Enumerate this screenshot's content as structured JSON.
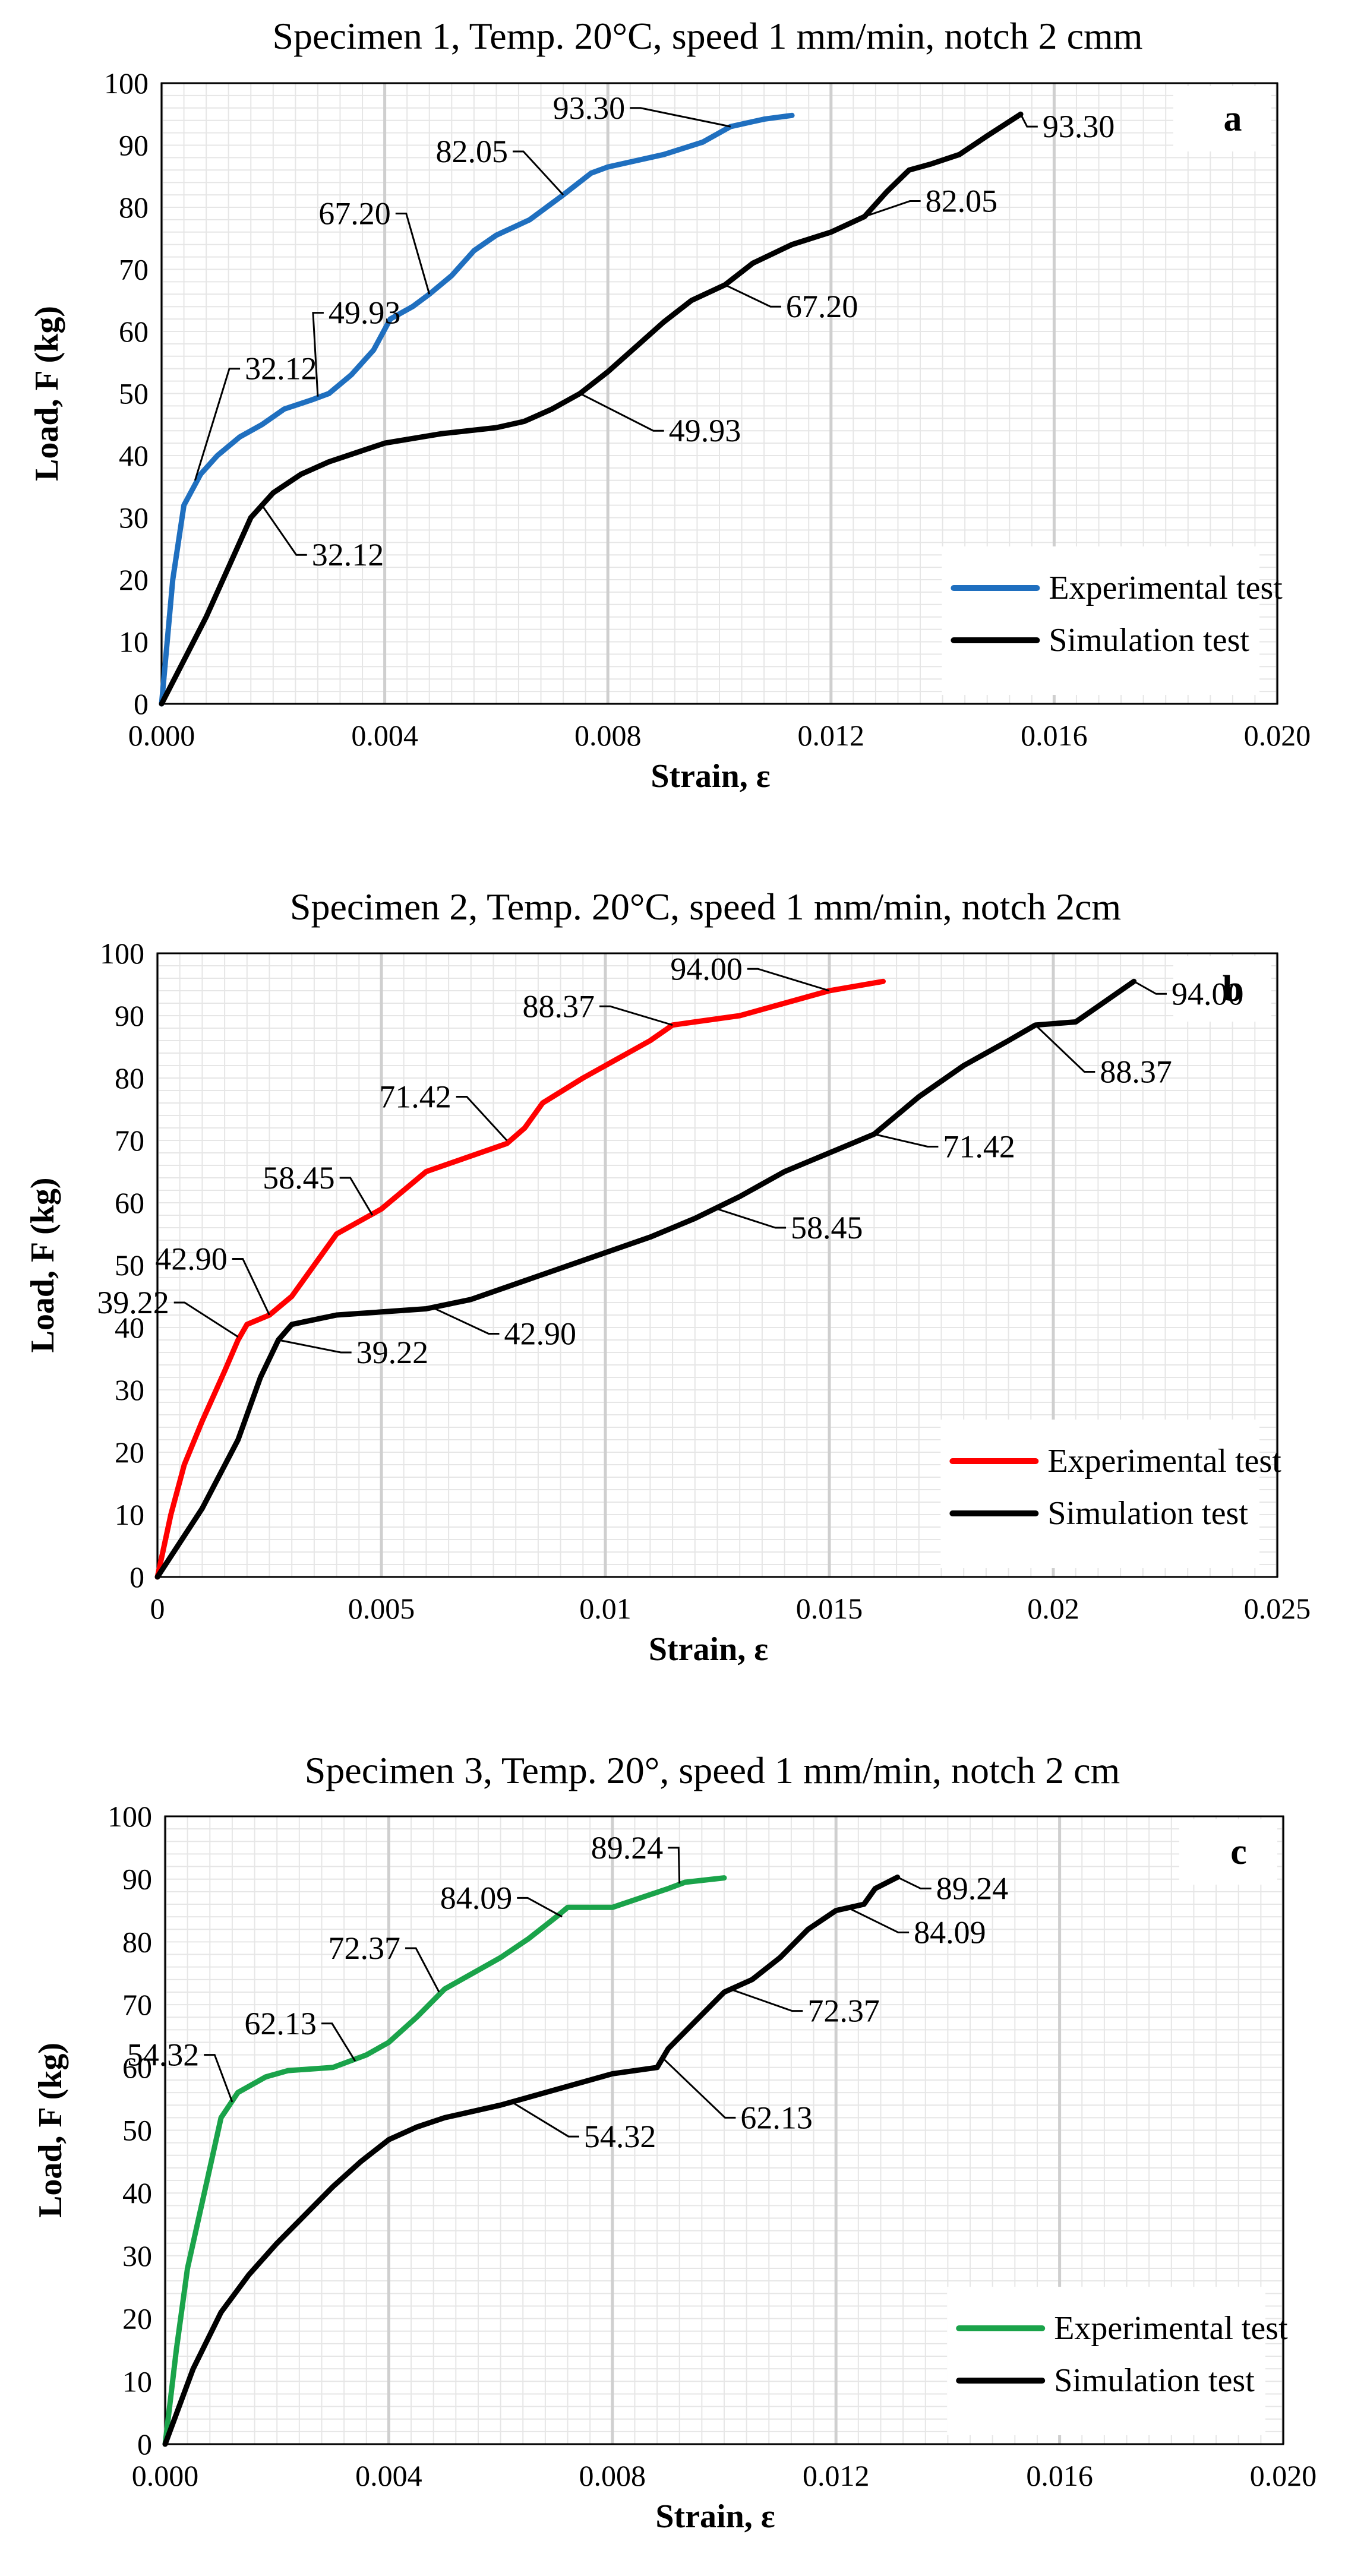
{
  "chart_data": [
    {
      "type": "line",
      "panel_label": "a",
      "title": "Specimen 1, Temp. 20°C, speed 1 mm/min, notch 2 cmm",
      "xlabel": "Strain, ε",
      "ylabel": "Load, F (kg)",
      "xlim": [
        0,
        0.02
      ],
      "ylim": [
        0,
        100
      ],
      "xticks": [
        0,
        0.004,
        0.008,
        0.012,
        0.016,
        0.02
      ],
      "xtick_labels": [
        "0.000",
        "0.004",
        "0.008",
        "0.012",
        "0.016",
        "0.020"
      ],
      "yticks": [
        0,
        10,
        20,
        30,
        40,
        50,
        60,
        70,
        80,
        90,
        100
      ],
      "ytick_labels": [
        "0",
        "10",
        "20",
        "30",
        "40",
        "50",
        "60",
        "70",
        "80",
        "90",
        "100"
      ],
      "legend": "bottom-right",
      "series": [
        {
          "name": "Experimental test",
          "color": "#1f6fbf",
          "points": [
            [
              0,
              0
            ],
            [
              0.0002,
              20
            ],
            [
              0.0004,
              32
            ],
            [
              0.0007,
              37
            ],
            [
              0.001,
              40
            ],
            [
              0.0014,
              43
            ],
            [
              0.0018,
              45
            ],
            [
              0.0022,
              47.5
            ],
            [
              0.0027,
              49
            ],
            [
              0.003,
              50
            ],
            [
              0.0034,
              53
            ],
            [
              0.0038,
              57
            ],
            [
              0.0041,
              62
            ],
            [
              0.0045,
              64
            ],
            [
              0.0048,
              66
            ],
            [
              0.0052,
              69
            ],
            [
              0.0056,
              73
            ],
            [
              0.006,
              75.5
            ],
            [
              0.0066,
              78
            ],
            [
              0.0072,
              82
            ],
            [
              0.0077,
              85.5
            ],
            [
              0.008,
              86.5
            ],
            [
              0.0085,
              87.5
            ],
            [
              0.009,
              88.5
            ],
            [
              0.0097,
              90.5
            ],
            [
              0.0102,
              93
            ],
            [
              0.0108,
              94.2
            ],
            [
              0.0113,
              94.8
            ]
          ]
        },
        {
          "name": "Simulation test",
          "color": "#000000",
          "points": [
            [
              0,
              0
            ],
            [
              0.0008,
              14
            ],
            [
              0.0016,
              30
            ],
            [
              0.002,
              34
            ],
            [
              0.0025,
              37
            ],
            [
              0.003,
              39
            ],
            [
              0.0035,
              40.5
            ],
            [
              0.004,
              42
            ],
            [
              0.005,
              43.5
            ],
            [
              0.006,
              44.5
            ],
            [
              0.0065,
              45.5
            ],
            [
              0.007,
              47.5
            ],
            [
              0.0075,
              50
            ],
            [
              0.008,
              53.5
            ],
            [
              0.0085,
              57.5
            ],
            [
              0.009,
              61.5
            ],
            [
              0.0095,
              65
            ],
            [
              0.0101,
              67.5
            ],
            [
              0.0106,
              71
            ],
            [
              0.0113,
              74
            ],
            [
              0.012,
              76
            ],
            [
              0.0126,
              78.5
            ],
            [
              0.013,
              82.5
            ],
            [
              0.0134,
              86
            ],
            [
              0.0138,
              87
            ],
            [
              0.0143,
              88.5
            ],
            [
              0.0148,
              91.5
            ],
            [
              0.0154,
              95
            ]
          ]
        }
      ],
      "annotations": [
        {
          "series": "Experimental test",
          "label": "32.12",
          "x": 0.0006,
          "y": 36,
          "tx": 0.0013,
          "ty": 54
        },
        {
          "series": "Experimental test",
          "label": "49.93",
          "x": 0.0028,
          "y": 49.5,
          "tx": 0.0028,
          "ty": 63
        },
        {
          "series": "Experimental test",
          "label": "67.20",
          "x": 0.0048,
          "y": 66,
          "tx": 0.0043,
          "ty": 79
        },
        {
          "series": "Experimental test",
          "label": "82.05",
          "x": 0.0072,
          "y": 82,
          "tx": 0.0064,
          "ty": 89
        },
        {
          "series": "Experimental test",
          "label": "93.30",
          "x": 0.0102,
          "y": 93,
          "tx": 0.0085,
          "ty": 96
        },
        {
          "series": "Simulation test",
          "label": "32.12",
          "x": 0.0018,
          "y": 32,
          "tx": 0.0025,
          "ty": 24
        },
        {
          "series": "Simulation test",
          "label": "49.93",
          "x": 0.0075,
          "y": 50,
          "tx": 0.0089,
          "ty": 44
        },
        {
          "series": "Simulation test",
          "label": "67.20",
          "x": 0.0101,
          "y": 67.5,
          "tx": 0.011,
          "ty": 64
        },
        {
          "series": "Simulation test",
          "label": "82.05",
          "x": 0.0126,
          "y": 78.5,
          "tx": 0.0135,
          "ty": 81
        },
        {
          "series": "Simulation test",
          "label": "93.30",
          "x": 0.0154,
          "y": 95,
          "tx": 0.0156,
          "ty": 93
        }
      ]
    },
    {
      "type": "line",
      "panel_label": "b",
      "title": "Specimen 2, Temp. 20°C, speed 1 mm/min, notch 2cm",
      "xlabel": "Strain, ε",
      "ylabel": "Load, F (kg)",
      "xlim": [
        0,
        0.025
      ],
      "ylim": [
        0,
        100
      ],
      "xticks": [
        0,
        0.005,
        0.01,
        0.015,
        0.02,
        0.025
      ],
      "xtick_labels": [
        "0",
        "0.005",
        "0.01",
        "0.015",
        "0.02",
        "0.025"
      ],
      "yticks": [
        0,
        10,
        20,
        30,
        40,
        50,
        60,
        70,
        80,
        90,
        100
      ],
      "ytick_labels": [
        "0",
        "10",
        "20",
        "30",
        "40",
        "50",
        "60",
        "70",
        "80",
        "90",
        "100"
      ],
      "legend": "bottom-right",
      "series": [
        {
          "name": "Experimental test",
          "color": "#ff0000",
          "points": [
            [
              0,
              0
            ],
            [
              0.0003,
              10
            ],
            [
              0.0006,
              18
            ],
            [
              0.001,
              25
            ],
            [
              0.0015,
              33
            ],
            [
              0.0018,
              38
            ],
            [
              0.002,
              40.5
            ],
            [
              0.0025,
              42
            ],
            [
              0.003,
              45
            ],
            [
              0.0035,
              50
            ],
            [
              0.004,
              55
            ],
            [
              0.005,
              59
            ],
            [
              0.006,
              65
            ],
            [
              0.007,
              67.5
            ],
            [
              0.0078,
              69.5
            ],
            [
              0.0082,
              72
            ],
            [
              0.0086,
              76
            ],
            [
              0.0095,
              80
            ],
            [
              0.0105,
              84
            ],
            [
              0.011,
              86
            ],
            [
              0.0115,
              88.5
            ],
            [
              0.012,
              89
            ],
            [
              0.013,
              90
            ],
            [
              0.014,
              92
            ],
            [
              0.015,
              94
            ],
            [
              0.0162,
              95.5
            ]
          ]
        },
        {
          "name": "Simulation test",
          "color": "#000000",
          "points": [
            [
              0,
              0
            ],
            [
              0.001,
              11
            ],
            [
              0.0018,
              22
            ],
            [
              0.0023,
              32
            ],
            [
              0.0027,
              38
            ],
            [
              0.003,
              40.5
            ],
            [
              0.004,
              42
            ],
            [
              0.005,
              42.5
            ],
            [
              0.006,
              43
            ],
            [
              0.007,
              44.5
            ],
            [
              0.008,
              47
            ],
            [
              0.009,
              49.5
            ],
            [
              0.01,
              52
            ],
            [
              0.011,
              54.5
            ],
            [
              0.012,
              57.5
            ],
            [
              0.013,
              61
            ],
            [
              0.014,
              65
            ],
            [
              0.015,
              68
            ],
            [
              0.016,
              71
            ],
            [
              0.017,
              77
            ],
            [
              0.018,
              82
            ],
            [
              0.019,
              86
            ],
            [
              0.0196,
              88.5
            ],
            [
              0.0205,
              89
            ],
            [
              0.021,
              91.5
            ],
            [
              0.0218,
              95.5
            ]
          ]
        }
      ],
      "annotations": [
        {
          "series": "Experimental test",
          "label": "39.22",
          "x": 0.0018,
          "y": 38.5,
          "tx": 0.0005,
          "ty": 44
        },
        {
          "series": "Experimental test",
          "label": "42.90",
          "x": 0.0025,
          "y": 42,
          "tx": 0.0018,
          "ty": 51
        },
        {
          "series": "Experimental test",
          "label": "58.45",
          "x": 0.0048,
          "y": 58,
          "tx": 0.0042,
          "ty": 64
        },
        {
          "series": "Experimental test",
          "label": "71.42",
          "x": 0.0078,
          "y": 70,
          "tx": 0.0068,
          "ty": 77
        },
        {
          "series": "Experimental test",
          "label": "88.37",
          "x": 0.0115,
          "y": 88.5,
          "tx": 0.01,
          "ty": 91.5
        },
        {
          "series": "Experimental test",
          "label": "94.00",
          "x": 0.015,
          "y": 94,
          "tx": 0.0133,
          "ty": 97.5
        },
        {
          "series": "Simulation test",
          "label": "39.22",
          "x": 0.0027,
          "y": 38,
          "tx": 0.0042,
          "ty": 36
        },
        {
          "series": "Simulation test",
          "label": "42.90",
          "x": 0.0062,
          "y": 43,
          "tx": 0.0075,
          "ty": 39
        },
        {
          "series": "Simulation test",
          "label": "58.45",
          "x": 0.0125,
          "y": 59,
          "tx": 0.0139,
          "ty": 56
        },
        {
          "series": "Simulation test",
          "label": "71.42",
          "x": 0.016,
          "y": 71,
          "tx": 0.0173,
          "ty": 69
        },
        {
          "series": "Simulation test",
          "label": "88.37",
          "x": 0.0196,
          "y": 88.5,
          "tx": 0.0208,
          "ty": 81
        },
        {
          "series": "Simulation test",
          "label": "94.00",
          "x": 0.0218,
          "y": 95.5,
          "tx": 0.0224,
          "ty": 93.5
        }
      ]
    },
    {
      "type": "line",
      "panel_label": "c",
      "title": "Specimen 3, Temp. 20°, speed 1 mm/min, notch 2 cm",
      "xlabel": "Strain, ε",
      "ylabel": "Load, F (kg)",
      "xlim": [
        0,
        0.02
      ],
      "ylim": [
        0,
        100
      ],
      "xticks": [
        0,
        0.004,
        0.008,
        0.012,
        0.016,
        0.02
      ],
      "xtick_labels": [
        "0.000",
        "0.004",
        "0.008",
        "0.012",
        "0.016",
        "0.020"
      ],
      "yticks": [
        0,
        10,
        20,
        30,
        40,
        50,
        60,
        70,
        80,
        90,
        100
      ],
      "ytick_labels": [
        "0",
        "10",
        "20",
        "30",
        "40",
        "50",
        "60",
        "70",
        "80",
        "90",
        "100"
      ],
      "legend": "bottom-right",
      "series": [
        {
          "name": "Experimental test",
          "color": "#1aa34a",
          "points": [
            [
              0,
              0
            ],
            [
              0.0002,
              15
            ],
            [
              0.0004,
              28
            ],
            [
              0.0007,
              40
            ],
            [
              0.001,
              52
            ],
            [
              0.0013,
              56
            ],
            [
              0.0018,
              58.5
            ],
            [
              0.0022,
              59.5
            ],
            [
              0.003,
              60
            ],
            [
              0.0036,
              62
            ],
            [
              0.004,
              64
            ],
            [
              0.0045,
              68
            ],
            [
              0.005,
              72.5
            ],
            [
              0.0055,
              75
            ],
            [
              0.006,
              77.5
            ],
            [
              0.0065,
              80.5
            ],
            [
              0.007,
              84
            ],
            [
              0.0072,
              85.5
            ],
            [
              0.008,
              85.5
            ],
            [
              0.0085,
              87
            ],
            [
              0.009,
              88.5
            ],
            [
              0.0093,
              89.5
            ],
            [
              0.01,
              90.2
            ]
          ]
        },
        {
          "name": "Simulation test",
          "color": "#000000",
          "points": [
            [
              0,
              0
            ],
            [
              0.0005,
              12
            ],
            [
              0.001,
              21
            ],
            [
              0.0015,
              27
            ],
            [
              0.002,
              32
            ],
            [
              0.0025,
              36.5
            ],
            [
              0.003,
              41
            ],
            [
              0.0035,
              45
            ],
            [
              0.004,
              48.5
            ],
            [
              0.0045,
              50.5
            ],
            [
              0.005,
              52
            ],
            [
              0.006,
              54
            ],
            [
              0.007,
              56.5
            ],
            [
              0.008,
              59
            ],
            [
              0.0088,
              60
            ],
            [
              0.009,
              63
            ],
            [
              0.0095,
              67.5
            ],
            [
              0.01,
              72
            ],
            [
              0.0105,
              74
            ],
            [
              0.011,
              77.5
            ],
            [
              0.0115,
              82
            ],
            [
              0.012,
              85
            ],
            [
              0.0125,
              86
            ],
            [
              0.0127,
              88.5
            ],
            [
              0.0131,
              90.3
            ]
          ]
        }
      ],
      "annotations": [
        {
          "series": "Experimental test",
          "label": "54.32",
          "x": 0.0012,
          "y": 54.5,
          "tx": 0.0008,
          "ty": 62
        },
        {
          "series": "Experimental test",
          "label": "62.13",
          "x": 0.0034,
          "y": 61,
          "tx": 0.0029,
          "ty": 67
        },
        {
          "series": "Experimental test",
          "label": "72.37",
          "x": 0.0049,
          "y": 72,
          "tx": 0.0044,
          "ty": 79
        },
        {
          "series": "Experimental test",
          "label": "84.09",
          "x": 0.0071,
          "y": 84,
          "tx": 0.0064,
          "ty": 87
        },
        {
          "series": "Experimental test",
          "label": "89.24",
          "x": 0.0092,
          "y": 89.3,
          "tx": 0.0091,
          "ty": 95
        },
        {
          "series": "Simulation test",
          "label": "54.32",
          "x": 0.0062,
          "y": 54.5,
          "tx": 0.0073,
          "ty": 49
        },
        {
          "series": "Simulation test",
          "label": "62.13",
          "x": 0.0089,
          "y": 61.5,
          "tx": 0.0101,
          "ty": 52
        },
        {
          "series": "Simulation test",
          "label": "72.37",
          "x": 0.0101,
          "y": 72.5,
          "tx": 0.0113,
          "ty": 69
        },
        {
          "series": "Simulation test",
          "label": "84.09",
          "x": 0.0122,
          "y": 85.5,
          "tx": 0.0132,
          "ty": 81.5
        },
        {
          "series": "Simulation test",
          "label": "89.24",
          "x": 0.0131,
          "y": 90.3,
          "tx": 0.0136,
          "ty": 88.5
        }
      ]
    }
  ]
}
